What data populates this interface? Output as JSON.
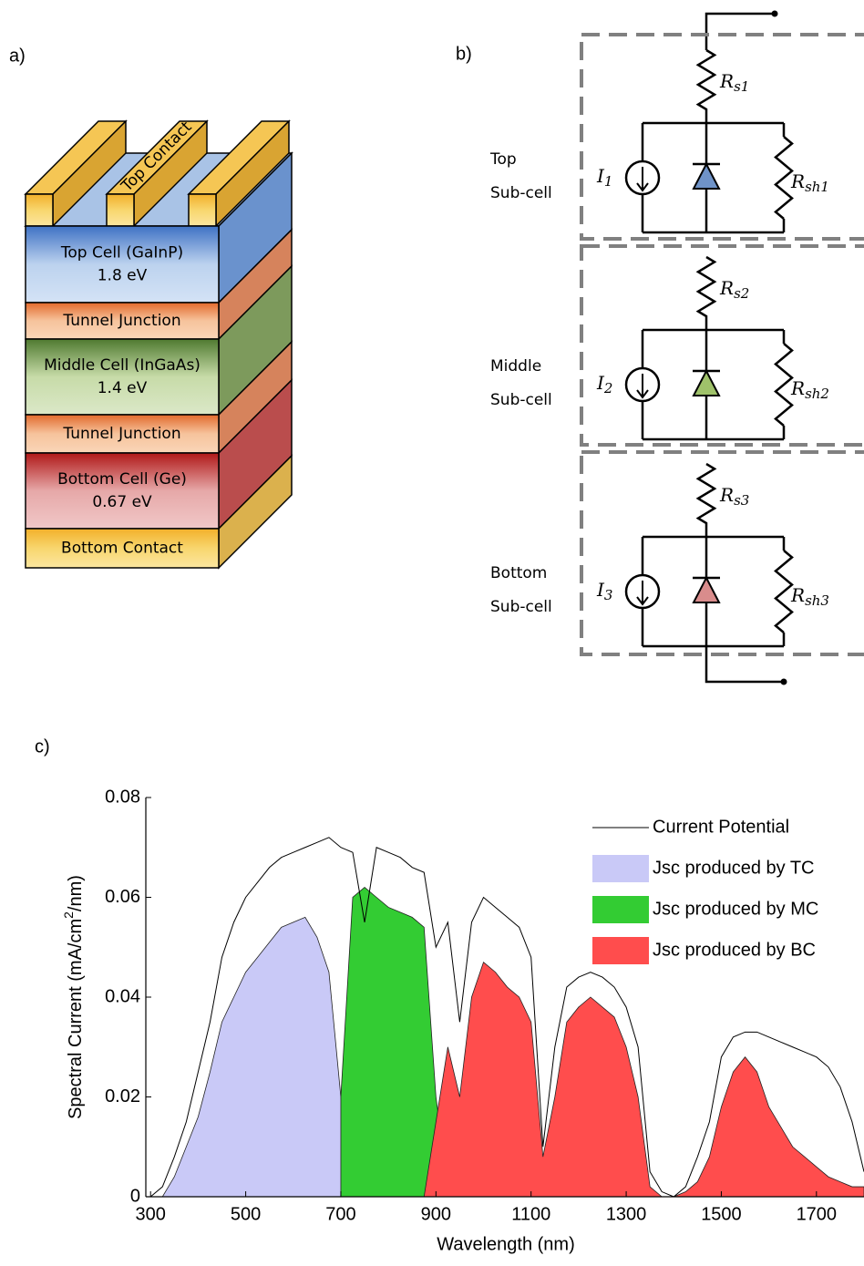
{
  "panel_a": {
    "label": "a)",
    "contact": "Top Contact",
    "layers": [
      [
        "Top Cell (GaInP)",
        "1.8 eV"
      ],
      [
        "Tunnel Junction"
      ],
      [
        "Middle Cell (InGaAs)",
        "1.4 eV"
      ],
      [
        "Tunnel Junction"
      ],
      [
        "Bottom Cell (Ge)",
        "0.67 eV"
      ],
      [
        "Bottom Contact"
      ]
    ]
  },
  "panel_b": {
    "label": "b)",
    "subcells": [
      {
        "name": [
          "Top",
          "Sub-cell"
        ],
        "source": {
          "symbol": "I",
          "sub": "1"
        },
        "series_r": {
          "symbol": "R",
          "sub": "s1"
        },
        "shunt_r": {
          "symbol": "R",
          "sub": "sh1"
        }
      },
      {
        "name": [
          "Middle",
          "Sub-cell"
        ],
        "source": {
          "symbol": "I",
          "sub": "2"
        },
        "series_r": {
          "symbol": "R",
          "sub": "s2"
        },
        "shunt_r": {
          "symbol": "R",
          "sub": "sh2"
        }
      },
      {
        "name": [
          "Bottom",
          "Sub-cell"
        ],
        "source": {
          "symbol": "I",
          "sub": "3"
        },
        "series_r": {
          "symbol": "R",
          "sub": "s3"
        },
        "shunt_r": {
          "symbol": "R",
          "sub": "sh3"
        }
      }
    ]
  },
  "chart_data": {
    "type": "area",
    "panel_label": "c)",
    "x_label": "Wavelength (nm)",
    "y_label": {
      "before": "Spectral Current (mA/cm",
      "sup": "2",
      "after": "/nm)"
    },
    "xlim": [
      290,
      1800
    ],
    "xticks": [
      300,
      500,
      700,
      900,
      1100,
      1300,
      1500,
      1700
    ],
    "ylim": [
      0,
      0.08
    ],
    "yticks": [
      0,
      0.02,
      0.04,
      0.06,
      0.08
    ],
    "legend": "upper right",
    "x": [
      300,
      325,
      350,
      375,
      400,
      425,
      450,
      475,
      500,
      525,
      550,
      575,
      600,
      625,
      650,
      675,
      700,
      725,
      750,
      775,
      800,
      825,
      850,
      875,
      900,
      925,
      950,
      975,
      1000,
      1025,
      1050,
      1075,
      1100,
      1125,
      1150,
      1175,
      1200,
      1225,
      1250,
      1275,
      1300,
      1325,
      1350,
      1375,
      1400,
      1425,
      1450,
      1475,
      1500,
      1525,
      1550,
      1575,
      1600,
      1625,
      1650,
      1675,
      1700,
      1725,
      1750,
      1775,
      1800
    ],
    "series": [
      {
        "name": "Jsc produced by TC",
        "type": "area",
        "color": "#c9c9f7",
        "values": [
          0,
          0,
          0.004,
          0.01,
          0.016,
          0.025,
          0.035,
          0.04,
          0.045,
          0.048,
          0.051,
          0.054,
          0.055,
          0.056,
          0.052,
          0.045,
          0.02,
          0,
          null,
          null,
          null,
          null,
          null,
          null,
          null,
          null,
          null,
          null,
          null,
          null,
          null,
          null,
          null,
          null,
          null,
          null,
          null,
          null,
          null,
          null,
          null,
          null,
          null,
          null,
          null,
          null,
          null,
          null,
          null,
          null,
          null,
          null,
          null,
          null,
          null,
          null,
          null,
          null,
          null,
          null,
          null
        ]
      },
      {
        "name": "Jsc produced by MC",
        "type": "area",
        "color": "#33cc33",
        "values": [
          null,
          null,
          null,
          null,
          null,
          null,
          null,
          null,
          null,
          null,
          null,
          null,
          null,
          null,
          null,
          null,
          0.02,
          0.06,
          0.062,
          0.06,
          0.058,
          0.057,
          0.056,
          0.054,
          0.02,
          0.002,
          0,
          null,
          null,
          null,
          null,
          null,
          null,
          null,
          null,
          null,
          null,
          null,
          null,
          null,
          null,
          null,
          null,
          null,
          null,
          null,
          null,
          null,
          null,
          null,
          null,
          null,
          null,
          null,
          null,
          null,
          null,
          null,
          null,
          null,
          null
        ]
      },
      {
        "name": "Jsc produced by BC",
        "type": "area",
        "color": "#ff4d4d",
        "values": [
          null,
          null,
          null,
          null,
          null,
          null,
          null,
          null,
          null,
          null,
          null,
          null,
          null,
          null,
          null,
          null,
          null,
          null,
          null,
          null,
          null,
          null,
          null,
          0,
          0.015,
          0.03,
          0.02,
          0.04,
          0.047,
          0.045,
          0.042,
          0.04,
          0.035,
          0.008,
          0.02,
          0.035,
          0.038,
          0.04,
          0.038,
          0.036,
          0.03,
          0.02,
          0.002,
          0,
          0,
          0.001,
          0.003,
          0.008,
          0.018,
          0.025,
          0.028,
          0.025,
          0.018,
          0.014,
          0.01,
          0.008,
          0.006,
          0.004,
          0.003,
          0.002,
          0.002
        ]
      },
      {
        "name": "Current Potential",
        "type": "line",
        "color": "#000000",
        "values": [
          0,
          0.002,
          0.008,
          0.015,
          0.025,
          0.035,
          0.048,
          0.055,
          0.06,
          0.063,
          0.066,
          0.068,
          0.069,
          0.07,
          0.071,
          0.072,
          0.07,
          0.069,
          0.055,
          0.07,
          0.069,
          0.068,
          0.066,
          0.065,
          0.05,
          0.055,
          0.035,
          0.055,
          0.06,
          0.058,
          0.056,
          0.054,
          0.048,
          0.01,
          0.03,
          0.042,
          0.044,
          0.045,
          0.044,
          0.042,
          0.038,
          0.03,
          0.005,
          0.001,
          0,
          0.002,
          0.008,
          0.015,
          0.028,
          0.032,
          0.033,
          0.033,
          0.032,
          0.031,
          0.03,
          0.029,
          0.028,
          0.026,
          0.022,
          0.015,
          0.005
        ]
      }
    ]
  }
}
